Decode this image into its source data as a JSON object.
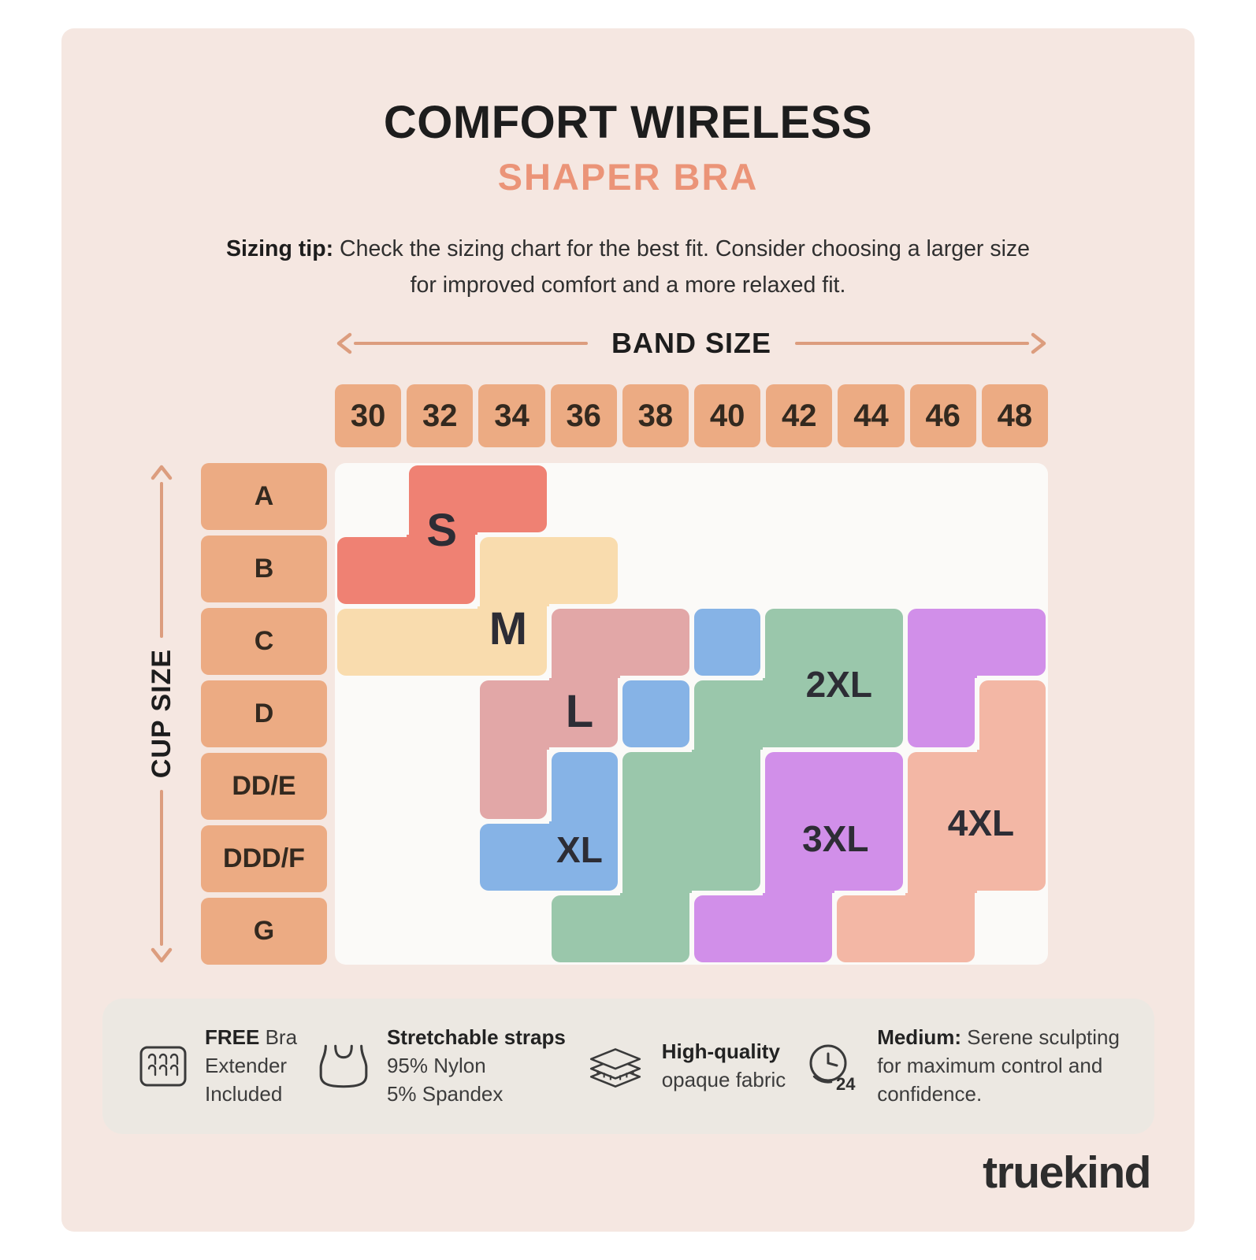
{
  "title": {
    "line1": "COMFORT WIRELESS",
    "line2": "SHAPER BRA"
  },
  "sizing_tip": {
    "bold": "Sizing tip:",
    "line1_rest": " Check the sizing chart for the best fit. Consider choosing a larger size",
    "line2": "for improved comfort and a more relaxed fit."
  },
  "colors": {
    "background": "#f5e7e1",
    "accent": "#eb9478",
    "header_box": "#ecab83",
    "arrow": "#dc9d7e",
    "grid_background": "#fbfaf8",
    "features_bar": "#ece8e2",
    "brand_ink": "#2d2d2d"
  },
  "chart_data": {
    "type": "heatmap",
    "xlabel": "BAND SIZE",
    "ylabel": "CUP SIZE",
    "columns": [
      "30",
      "32",
      "34",
      "36",
      "38",
      "40",
      "42",
      "44",
      "46",
      "48"
    ],
    "rows": [
      "A",
      "B",
      "C",
      "D",
      "DD/E",
      "DDD/F",
      "G"
    ],
    "cells": [
      [
        "",
        "S",
        "S",
        "",
        "",
        "",
        "",
        "",
        "",
        ""
      ],
      [
        "S",
        "S",
        "M",
        "M",
        "",
        "",
        "",
        "",
        "",
        ""
      ],
      [
        "M",
        "M",
        "M",
        "L",
        "L",
        "XL",
        "2XL",
        "2XL",
        "3XL",
        "3XL"
      ],
      [
        "",
        "",
        "L",
        "L",
        "XL",
        "2XL",
        "2XL",
        "2XL",
        "3XL",
        "4XL"
      ],
      [
        "",
        "",
        "L",
        "XL",
        "2XL",
        "2XL",
        "3XL",
        "3XL",
        "4XL",
        "4XL"
      ],
      [
        "",
        "",
        "XL",
        "XL",
        "2XL",
        "2XL",
        "3XL",
        "3XL",
        "4XL",
        "4XL"
      ],
      [
        "",
        "",
        "",
        "2XL",
        "2XL",
        "3XL",
        "3XL",
        "4XL",
        "4XL",
        ""
      ]
    ],
    "sizes": {
      "S": {
        "label": "S",
        "color": "#ef8173",
        "r": 0.44,
        "c": 1.0
      },
      "M": {
        "label": "M",
        "color": "#f9dcae",
        "r": 1.82,
        "c": 1.93
      },
      "L": {
        "label": "L",
        "color": "#e2a7a7",
        "r": 2.97,
        "c": 2.93
      },
      "XL": {
        "label": "XL",
        "color": "#86b3e6",
        "r": 4.9,
        "c": 2.93
      },
      "2XL": {
        "label": "2XL",
        "color": "#9ac7ab",
        "r": 2.59,
        "c": 6.57
      },
      "3XL": {
        "label": "3XL",
        "color": "#d18fe9",
        "r": 4.74,
        "c": 6.52
      },
      "4XL": {
        "label": "4XL",
        "color": "#f3b7a5",
        "r": 4.52,
        "c": 8.56
      }
    }
  },
  "features": [
    {
      "icon": "bra-extender-icon",
      "lines": [
        [
          {
            "t": "FREE",
            "b": true
          },
          {
            "t": " Bra",
            "b": false
          }
        ],
        [
          {
            "t": "Extender",
            "b": false
          }
        ],
        [
          {
            "t": "Included",
            "b": false
          }
        ]
      ]
    },
    {
      "icon": "bra-icon",
      "lines": [
        [
          {
            "t": "Stretchable straps",
            "b": true
          }
        ],
        [
          {
            "t": "95% Nylon",
            "b": false
          }
        ],
        [
          {
            "t": "5% Spandex",
            "b": false
          }
        ]
      ]
    },
    {
      "icon": "fabric-icon",
      "lines": [
        [
          {
            "t": "High-quality",
            "b": true
          }
        ],
        [
          {
            "t": "opaque fabric",
            "b": false
          }
        ]
      ]
    },
    {
      "icon": "clock-24-icon",
      "icon_label": "24",
      "lines": [
        [
          {
            "t": "Medium:",
            "b": true
          },
          {
            "t": " Serene sculpting",
            "b": false
          }
        ],
        [
          {
            "t": "for maximum control and",
            "b": false
          }
        ],
        [
          {
            "t": "confidence.",
            "b": false
          }
        ]
      ]
    }
  ],
  "brand": "truekind"
}
